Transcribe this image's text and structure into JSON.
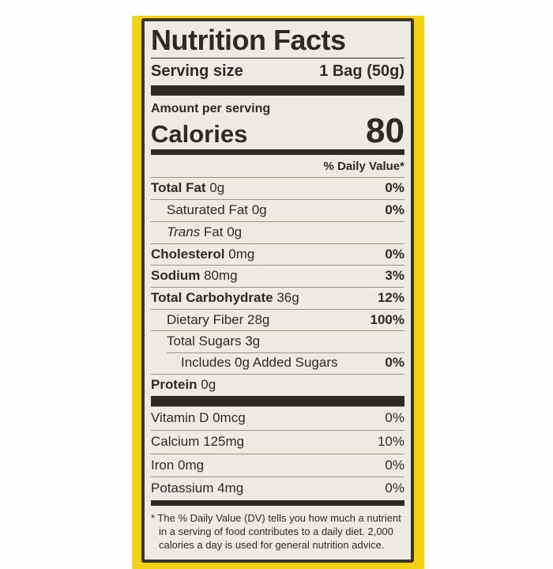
{
  "label": {
    "title": "Nutrition Facts",
    "serving": {
      "label": "Serving size",
      "value": "1 Bag (50g)"
    },
    "amount_per_serving": "Amount per serving",
    "calories": {
      "label": "Calories",
      "value": "80"
    },
    "daily_value_header": "% Daily Value*",
    "nutrients": [
      {
        "bold": "Total Fat",
        "italic": "",
        "text": " 0g",
        "dv": "0%"
      },
      {
        "bold": "",
        "italic": "",
        "text": "Saturated Fat 0g",
        "dv": "0%"
      },
      {
        "bold": "",
        "italic": "Trans",
        "text": " Fat 0g",
        "dv": ""
      },
      {
        "bold": "Cholesterol",
        "italic": "",
        "text": " 0mg",
        "dv": "0%"
      },
      {
        "bold": "Sodium",
        "italic": "",
        "text": " 80mg",
        "dv": "3%"
      },
      {
        "bold": "Total Carbohydrate",
        "italic": "",
        "text": " 36g",
        "dv": "12%"
      },
      {
        "bold": "",
        "italic": "",
        "text": "Dietary Fiber 28g",
        "dv": "100%"
      },
      {
        "bold": "",
        "italic": "",
        "text": "Total Sugars 3g",
        "dv": ""
      },
      {
        "bold": "",
        "italic": "",
        "text": "Includes 0g Added Sugars",
        "dv": "0%"
      },
      {
        "bold": "Protein",
        "italic": "",
        "text": " 0g",
        "dv": ""
      }
    ],
    "micronutrients": [
      {
        "text": "Vitamin D 0mcg",
        "dv": "0%"
      },
      {
        "text": "Calcium 125mg",
        "dv": "10%"
      },
      {
        "text": "Iron 0mg",
        "dv": "0%"
      },
      {
        "text": "Potassium 4mg",
        "dv": "0%"
      }
    ],
    "footnote": "* The % Daily Value (DV) tells you how much a nutrient in a serving of food contributes to a daily diet. 2,000 calories a day is used for general nutrition advice."
  },
  "colors": {
    "package_yellow": "#F2D314",
    "label_background": "#EDEAE5",
    "ink": "#2D2A25",
    "hairline": "#9A938A"
  }
}
